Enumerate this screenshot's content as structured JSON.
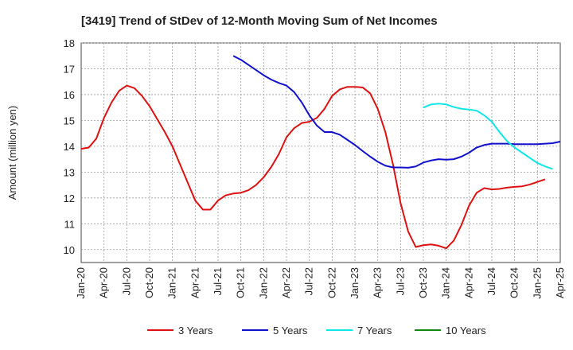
{
  "chart_data": {
    "type": "line",
    "title": "[3419]  Trend of StDev of 12-Month Moving Sum of Net Incomes",
    "ylabel": "Amount (million yen)",
    "xlabel": "",
    "ylim": [
      9.5,
      18
    ],
    "yticks": [
      10,
      11,
      12,
      13,
      14,
      15,
      16,
      17,
      18
    ],
    "x_start": "2020-01",
    "x_end": "2025-04",
    "xticks": [
      "Jan-20",
      "Apr-20",
      "Jul-20",
      "Oct-20",
      "Jan-21",
      "Apr-21",
      "Jul-21",
      "Oct-21",
      "Jan-22",
      "Apr-22",
      "Jul-22",
      "Oct-22",
      "Jan-23",
      "Apr-23",
      "Jul-23",
      "Oct-23",
      "Jan-24",
      "Apr-24",
      "Jul-24",
      "Oct-24",
      "Jan-25",
      "Apr-25"
    ],
    "grid": true,
    "legend_position": "bottom",
    "series": [
      {
        "name": "3 Years",
        "color": "#dd1111",
        "start": "2020-01",
        "values": [
          13.9,
          13.95,
          14.3,
          15.1,
          15.7,
          16.15,
          16.35,
          16.25,
          15.95,
          15.55,
          15.05,
          14.55,
          14.0,
          13.3,
          12.6,
          11.9,
          11.55,
          11.55,
          11.9,
          12.1,
          12.17,
          12.2,
          12.3,
          12.5,
          12.8,
          13.2,
          13.7,
          14.35,
          14.7,
          14.9,
          14.95,
          15.1,
          15.45,
          15.95,
          16.2,
          16.3,
          16.3,
          16.28,
          16.05,
          15.45,
          14.55,
          13.3,
          11.8,
          10.7,
          10.1,
          10.17,
          10.2,
          10.15,
          10.05,
          10.35,
          10.95,
          11.7,
          12.2,
          12.38,
          12.33,
          12.35,
          12.4,
          12.43,
          12.45,
          12.52,
          12.62,
          12.72
        ]
      },
      {
        "name": "5 Years",
        "color": "#1111cc",
        "start": "2021-09",
        "values": [
          17.5,
          17.35,
          17.15,
          16.95,
          16.75,
          16.58,
          16.45,
          16.35,
          16.1,
          15.7,
          15.2,
          14.8,
          14.55,
          14.55,
          14.45,
          14.25,
          14.05,
          13.82,
          13.6,
          13.4,
          13.25,
          13.18,
          13.18,
          13.17,
          13.22,
          13.37,
          13.45,
          13.5,
          13.48,
          13.5,
          13.6,
          13.75,
          13.95,
          14.05,
          14.1,
          14.1,
          14.1,
          14.08,
          14.08,
          14.08,
          14.08,
          14.1,
          14.12,
          14.18
        ]
      },
      {
        "name": "7 Years",
        "color": "#11e6e6",
        "start": "2023-10",
        "values": [
          15.5,
          15.62,
          15.65,
          15.62,
          15.52,
          15.45,
          15.42,
          15.38,
          15.2,
          14.95,
          14.55,
          14.2,
          13.95,
          13.75,
          13.55,
          13.35,
          13.22,
          13.12
        ]
      },
      {
        "name": "10 Years",
        "color": "#118811",
        "start": "2025-01",
        "values": []
      }
    ]
  }
}
